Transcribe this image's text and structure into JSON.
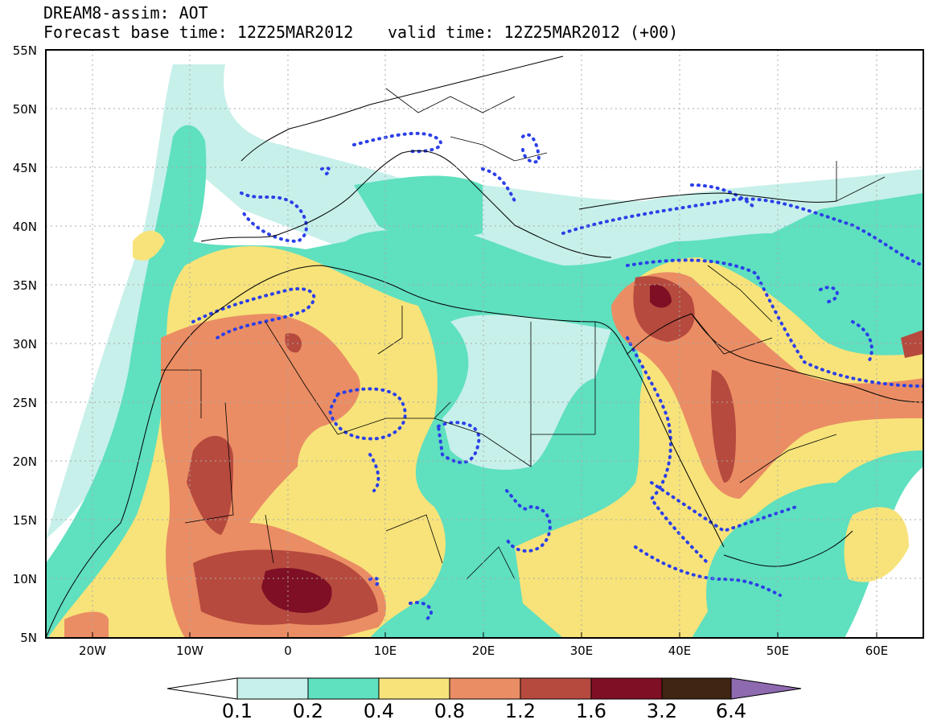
{
  "header": {
    "line1": "DREAM8-assim: AOT",
    "line2": "Forecast base time: 12Z25MAR2012",
    "line2b": "valid time: 12Z25MAR2012 (+00)"
  },
  "map": {
    "lon_range": [
      -25,
      65
    ],
    "lat_range": [
      5,
      55
    ],
    "lat_labels": [
      "55N",
      "50N",
      "45N",
      "40N",
      "35N",
      "30N",
      "25N",
      "20N",
      "15N",
      "10N",
      "5N"
    ],
    "lon_labels": [
      "20W",
      "10W",
      "0",
      "10E",
      "20E",
      "30E",
      "40E",
      "50E",
      "60E"
    ]
  },
  "legend": {
    "labels": [
      "0.1",
      "0.2",
      "0.4",
      "0.8",
      "1.2",
      "1.6",
      "3.2",
      "6.4"
    ],
    "colors": [
      "#ffffff",
      "#c7f0ea",
      "#5fe0bf",
      "#f7e37a",
      "#ea8d64",
      "#b64a3e",
      "#7e0f25",
      "#3f2512",
      "#8e6ab0"
    ]
  }
}
